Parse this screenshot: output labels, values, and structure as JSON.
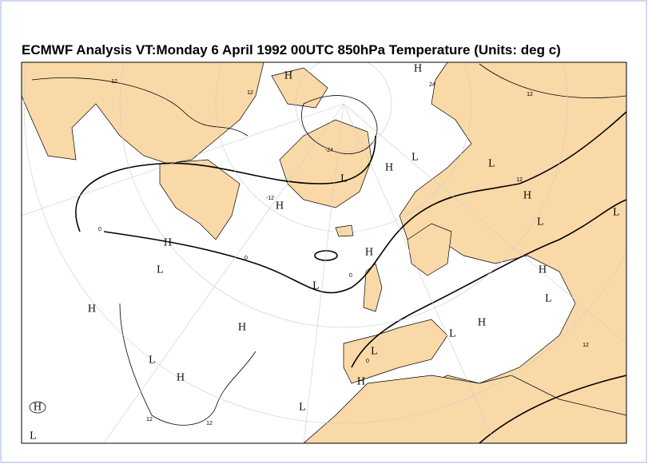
{
  "title": "ECMWF  Analysis VT:Monday 6 April 1992 00UTC 850hPa Temperature (Units: deg c)",
  "markers": [
    "H",
    "H",
    "L",
    "H",
    "L",
    "H",
    "L",
    "H",
    "L",
    "L",
    "H",
    "L",
    "H",
    "L",
    "H",
    "L",
    "H",
    "H",
    "H",
    "L",
    "L",
    "L",
    "H",
    "H",
    "H",
    "L",
    "L"
  ],
  "contour_labels": [
    "12",
    "12",
    "-24",
    "24",
    "12",
    "12",
    "0",
    "0",
    "0",
    "12",
    "12",
    "12",
    "0",
    "-12"
  ]
}
